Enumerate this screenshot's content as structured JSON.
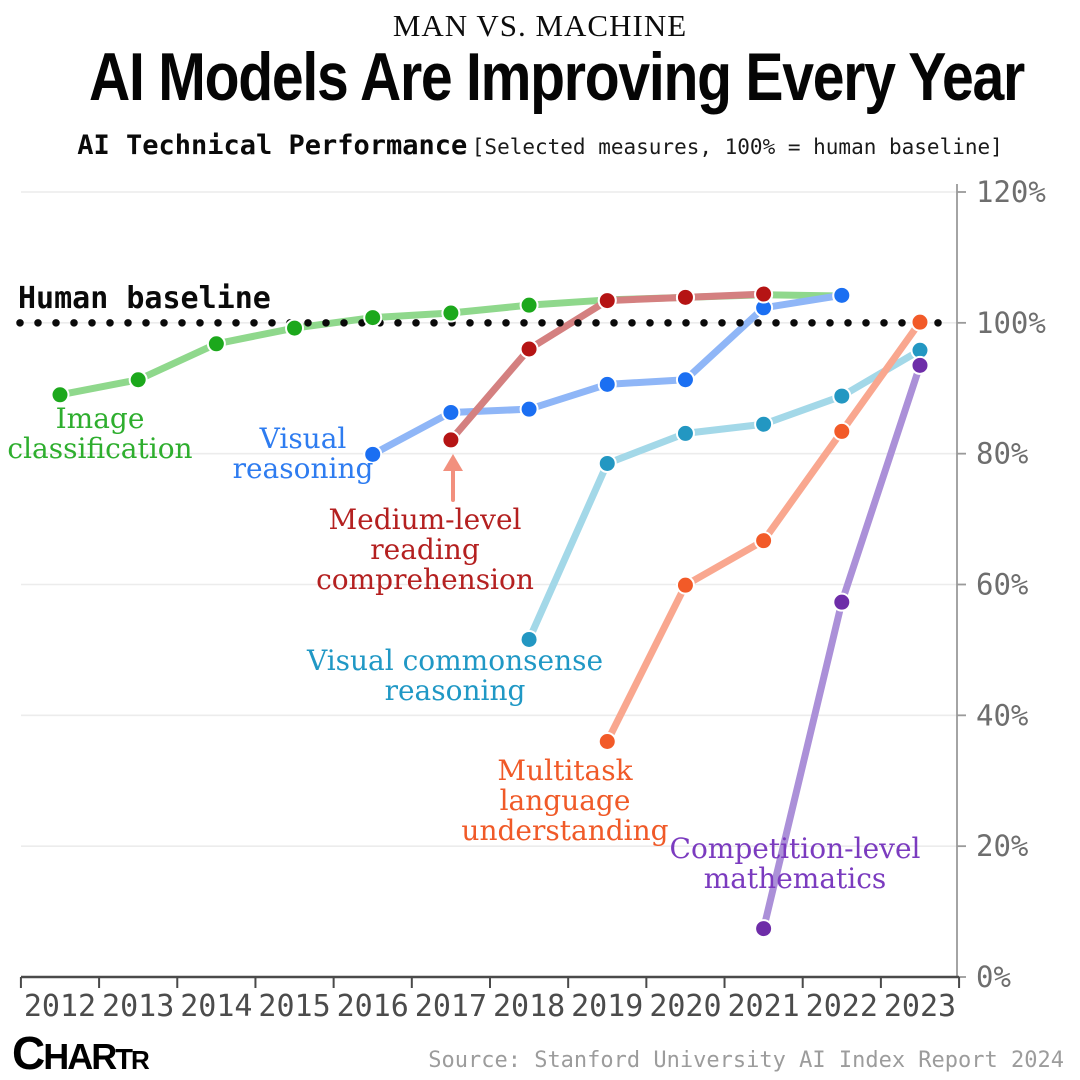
{
  "header": {
    "kicker": "MAN VS. MACHINE",
    "title": "AI Models Are Improving Every Year",
    "subtitle": "AI Technical Performance",
    "subtitle_note": "[Selected measures, 100% = human baseline]"
  },
  "chart_data": {
    "type": "line",
    "x": [
      2012,
      2013,
      2014,
      2015,
      2016,
      2017,
      2018,
      2019,
      2020,
      2021,
      2022,
      2023
    ],
    "ylim": [
      0,
      120
    ],
    "y_ticks": [
      0,
      20,
      40,
      60,
      80,
      100,
      120
    ],
    "y_tick_suffix": "%",
    "grid": true,
    "legend_position": "inline-labels",
    "human_baseline": {
      "label": "Human baseline",
      "value": 100
    },
    "series": [
      {
        "name": "Image classification",
        "label_lines": [
          "Image",
          "classification"
        ],
        "color_line": "#8FD88C",
        "color_dot": "#1CA81C",
        "color_label": "#2EAE2E",
        "points": [
          {
            "year": 2012,
            "value": 89.0
          },
          {
            "year": 2013,
            "value": 91.3
          },
          {
            "year": 2014,
            "value": 96.8
          },
          {
            "year": 2015,
            "value": 99.2
          },
          {
            "year": 2016,
            "value": 100.8
          },
          {
            "year": 2017,
            "value": 101.5
          },
          {
            "year": 2018,
            "value": 102.7
          },
          {
            "year": 2019,
            "value": 103.5
          },
          {
            "year": 2020,
            "value": 103.9
          },
          {
            "year": 2021,
            "value": 104.3
          },
          {
            "year": 2022,
            "value": 104.1
          }
        ]
      },
      {
        "name": "Visual reasoning",
        "label_lines": [
          "Visual",
          "reasoning"
        ],
        "color_line": "#8FB6F7",
        "color_dot": "#1B6FF2",
        "color_label": "#2E7CF0",
        "points": [
          {
            "year": 2016,
            "value": 79.9
          },
          {
            "year": 2017,
            "value": 86.3
          },
          {
            "year": 2018,
            "value": 86.8
          },
          {
            "year": 2019,
            "value": 90.6
          },
          {
            "year": 2020,
            "value": 91.3
          },
          {
            "year": 2021,
            "value": 102.3
          },
          {
            "year": 2022,
            "value": 104.2
          }
        ]
      },
      {
        "name": "Medium-level reading comprehension",
        "label_lines": [
          "Medium-level",
          "reading",
          "comprehension"
        ],
        "color_line": "#D48080",
        "color_dot": "#B51414",
        "color_label": "#B42020",
        "color_arrow": "#F2907E",
        "points": [
          {
            "year": 2017,
            "value": 82.1
          },
          {
            "year": 2018,
            "value": 96.0
          },
          {
            "year": 2019,
            "value": 103.4
          },
          {
            "year": 2020,
            "value": 103.9
          },
          {
            "year": 2021,
            "value": 104.4
          }
        ]
      },
      {
        "name": "Visual commonsense reasoning",
        "label_lines": [
          "Visual commonsense",
          "reasoning"
        ],
        "color_line": "#A3D8E8",
        "color_dot": "#2397C2",
        "color_label": "#2098C5",
        "points": [
          {
            "year": 2018,
            "value": 51.6
          },
          {
            "year": 2019,
            "value": 78.5
          },
          {
            "year": 2020,
            "value": 83.1
          },
          {
            "year": 2021,
            "value": 84.5
          },
          {
            "year": 2022,
            "value": 88.8
          },
          {
            "year": 2023,
            "value": 95.8
          }
        ]
      },
      {
        "name": "Multitask language understanding",
        "label_lines": [
          "Multitask",
          "language",
          "understanding"
        ],
        "color_line": "#F9A78F",
        "color_dot": "#F25A28",
        "color_label": "#F05A28",
        "points": [
          {
            "year": 2019,
            "value": 36.0
          },
          {
            "year": 2020,
            "value": 59.9
          },
          {
            "year": 2021,
            "value": 66.7
          },
          {
            "year": 2022,
            "value": 83.4
          },
          {
            "year": 2023,
            "value": 100.1
          }
        ]
      },
      {
        "name": "Competition-level mathematics",
        "label_lines": [
          "Competition-level",
          "mathematics"
        ],
        "color_line": "#AB90D8",
        "color_dot": "#6E2DA8",
        "color_label": "#7B3BBF",
        "points": [
          {
            "year": 2021,
            "value": 7.4
          },
          {
            "year": 2022,
            "value": 57.3
          },
          {
            "year": 2023,
            "value": 93.5
          }
        ]
      }
    ]
  },
  "footer": {
    "logo": {
      "part1": "C",
      "part2": "HAR",
      "part3": "T",
      "part4": "R"
    },
    "source": "Source: Stanford University AI Index Report 2024"
  }
}
